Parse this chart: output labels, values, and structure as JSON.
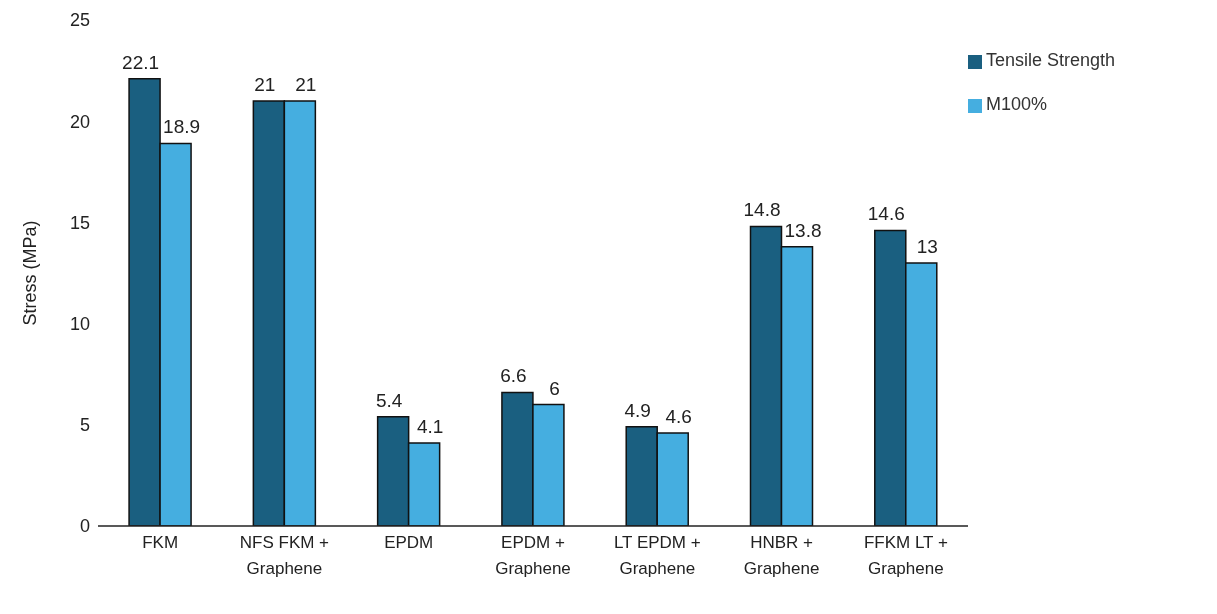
{
  "chart_data": {
    "type": "bar",
    "ylabel": "Stress (MPa)",
    "categories": [
      "FKM",
      "NFS FKM + Graphene",
      "EPDM",
      "EPDM + Graphene",
      "LT EPDM + Graphene",
      "HNBR + Graphene",
      "FFKM LT + Graphene"
    ],
    "series": [
      {
        "name": "Tensile Strength",
        "color": "#1a5f80",
        "values": [
          22.1,
          21,
          5.4,
          6.6,
          4.9,
          14.8,
          14.6
        ]
      },
      {
        "name": "M100%",
        "color": "#45aee0",
        "values": [
          18.9,
          21,
          4.1,
          6,
          4.6,
          13.8,
          13
        ]
      }
    ],
    "ylim": [
      0,
      25
    ],
    "yticks": [
      0,
      5,
      10,
      15,
      20,
      25
    ],
    "grid": false,
    "legend": "top right",
    "data_labels": true
  }
}
